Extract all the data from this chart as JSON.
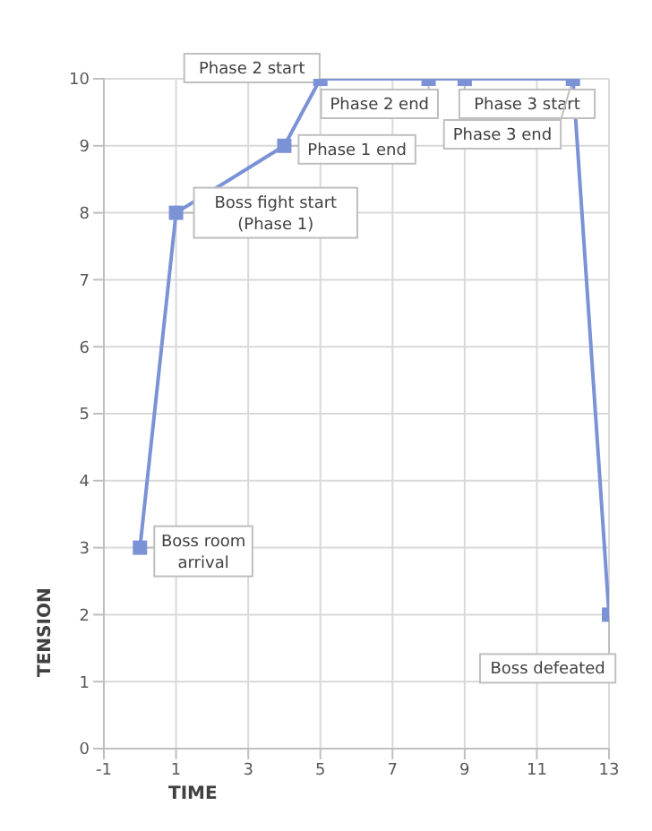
{
  "chart_data": {
    "type": "line",
    "xlabel": "TIME",
    "ylabel": "TENSION",
    "x": [
      0,
      1,
      4,
      5,
      8,
      9,
      12,
      13
    ],
    "series": [
      {
        "color": "#7b93d6",
        "values": [
          3,
          8,
          9,
          10,
          10,
          10,
          10,
          2
        ]
      }
    ],
    "xlim": [
      -1,
      13
    ],
    "xticks": [
      -1,
      1,
      3,
      5,
      7,
      9,
      11,
      13
    ],
    "ylim": [
      0,
      10
    ],
    "yticks": [
      0,
      1,
      2,
      3,
      4,
      5,
      6,
      7,
      8,
      9,
      10
    ],
    "grid": true,
    "marker": "square",
    "line_style": "solid",
    "annotations": [
      {
        "text": "Boss room arrival",
        "x": 0,
        "y": 3
      },
      {
        "text": "Boss fight start (Phase 1)",
        "x": 1,
        "y": 8
      },
      {
        "text": "Phase 1 end",
        "x": 4,
        "y": 9
      },
      {
        "text": "Phase 2 start",
        "x": 5,
        "y": 10
      },
      {
        "text": "Phase 2 end",
        "x": 8,
        "y": 10
      },
      {
        "text": "Phase 3 start",
        "x": 9,
        "y": 10
      },
      {
        "text": "Phase 3 end",
        "x": 12,
        "y": 10
      },
      {
        "text": "Boss defeated",
        "x": 13,
        "y": 2
      }
    ]
  }
}
